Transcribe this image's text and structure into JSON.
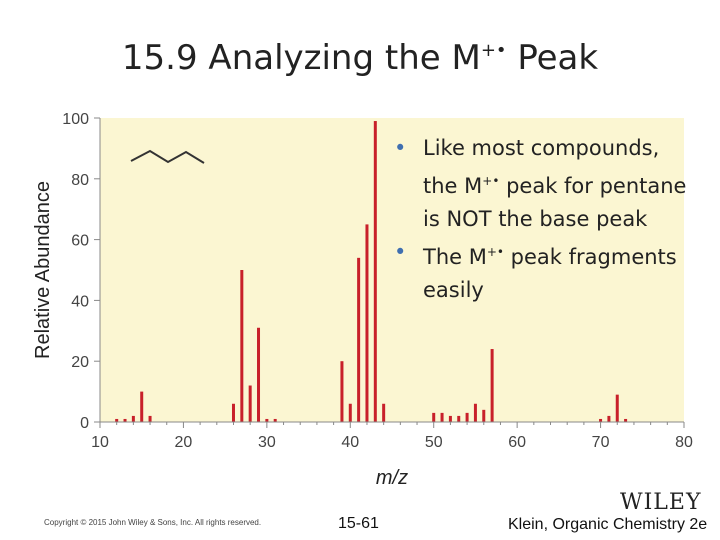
{
  "slide": {
    "title": "15.9 Analyzing the M",
    "title_superscript": "+•",
    "title_end": " Peak",
    "bullets": [
      {
        "before": "Like most compounds, the M",
        "sup": "+•",
        "after": " peak for pentane is NOT the base peak"
      },
      {
        "before": "The M",
        "sup": "+•",
        "after": " peak fragments easily"
      }
    ],
    "copyright": "Copyright © 2015 John Wiley & Sons, Inc. All rights reserved.",
    "slide_number": "15-61",
    "publisher": "WILEY",
    "citation": "Klein, Organic Chemistry 2e"
  },
  "colors": {
    "plot_background": "#fbf6d2",
    "peak": "#c8202a",
    "axis": "#888888",
    "bullet": "#3f6fb0"
  },
  "chart_data": {
    "type": "bar",
    "title": "",
    "xlabel": "m/z",
    "ylabel": "Relative Abundance",
    "xlim": [
      10,
      80
    ],
    "ylim": [
      0,
      100
    ],
    "xticks": [
      10,
      20,
      30,
      40,
      50,
      60,
      70,
      80
    ],
    "yticks": [
      0,
      20,
      40,
      60,
      80,
      100
    ],
    "grid": false,
    "legend": "none",
    "inset": "skeletal structure of pentane (zig-zag line)",
    "peaks": [
      {
        "x": 12,
        "y": 1
      },
      {
        "x": 13,
        "y": 1
      },
      {
        "x": 14,
        "y": 2
      },
      {
        "x": 15,
        "y": 10
      },
      {
        "x": 16,
        "y": 2
      },
      {
        "x": 26,
        "y": 6
      },
      {
        "x": 27,
        "y": 50
      },
      {
        "x": 28,
        "y": 12
      },
      {
        "x": 29,
        "y": 31
      },
      {
        "x": 30,
        "y": 1
      },
      {
        "x": 31,
        "y": 1
      },
      {
        "x": 39,
        "y": 20
      },
      {
        "x": 40,
        "y": 6
      },
      {
        "x": 41,
        "y": 54
      },
      {
        "x": 42,
        "y": 65
      },
      {
        "x": 43,
        "y": 99
      },
      {
        "x": 44,
        "y": 6
      },
      {
        "x": 50,
        "y": 3
      },
      {
        "x": 51,
        "y": 3
      },
      {
        "x": 52,
        "y": 2
      },
      {
        "x": 53,
        "y": 2
      },
      {
        "x": 54,
        "y": 3
      },
      {
        "x": 55,
        "y": 6
      },
      {
        "x": 56,
        "y": 4
      },
      {
        "x": 57,
        "y": 24
      },
      {
        "x": 70,
        "y": 1
      },
      {
        "x": 71,
        "y": 2
      },
      {
        "x": 72,
        "y": 9
      },
      {
        "x": 73,
        "y": 1
      }
    ]
  }
}
